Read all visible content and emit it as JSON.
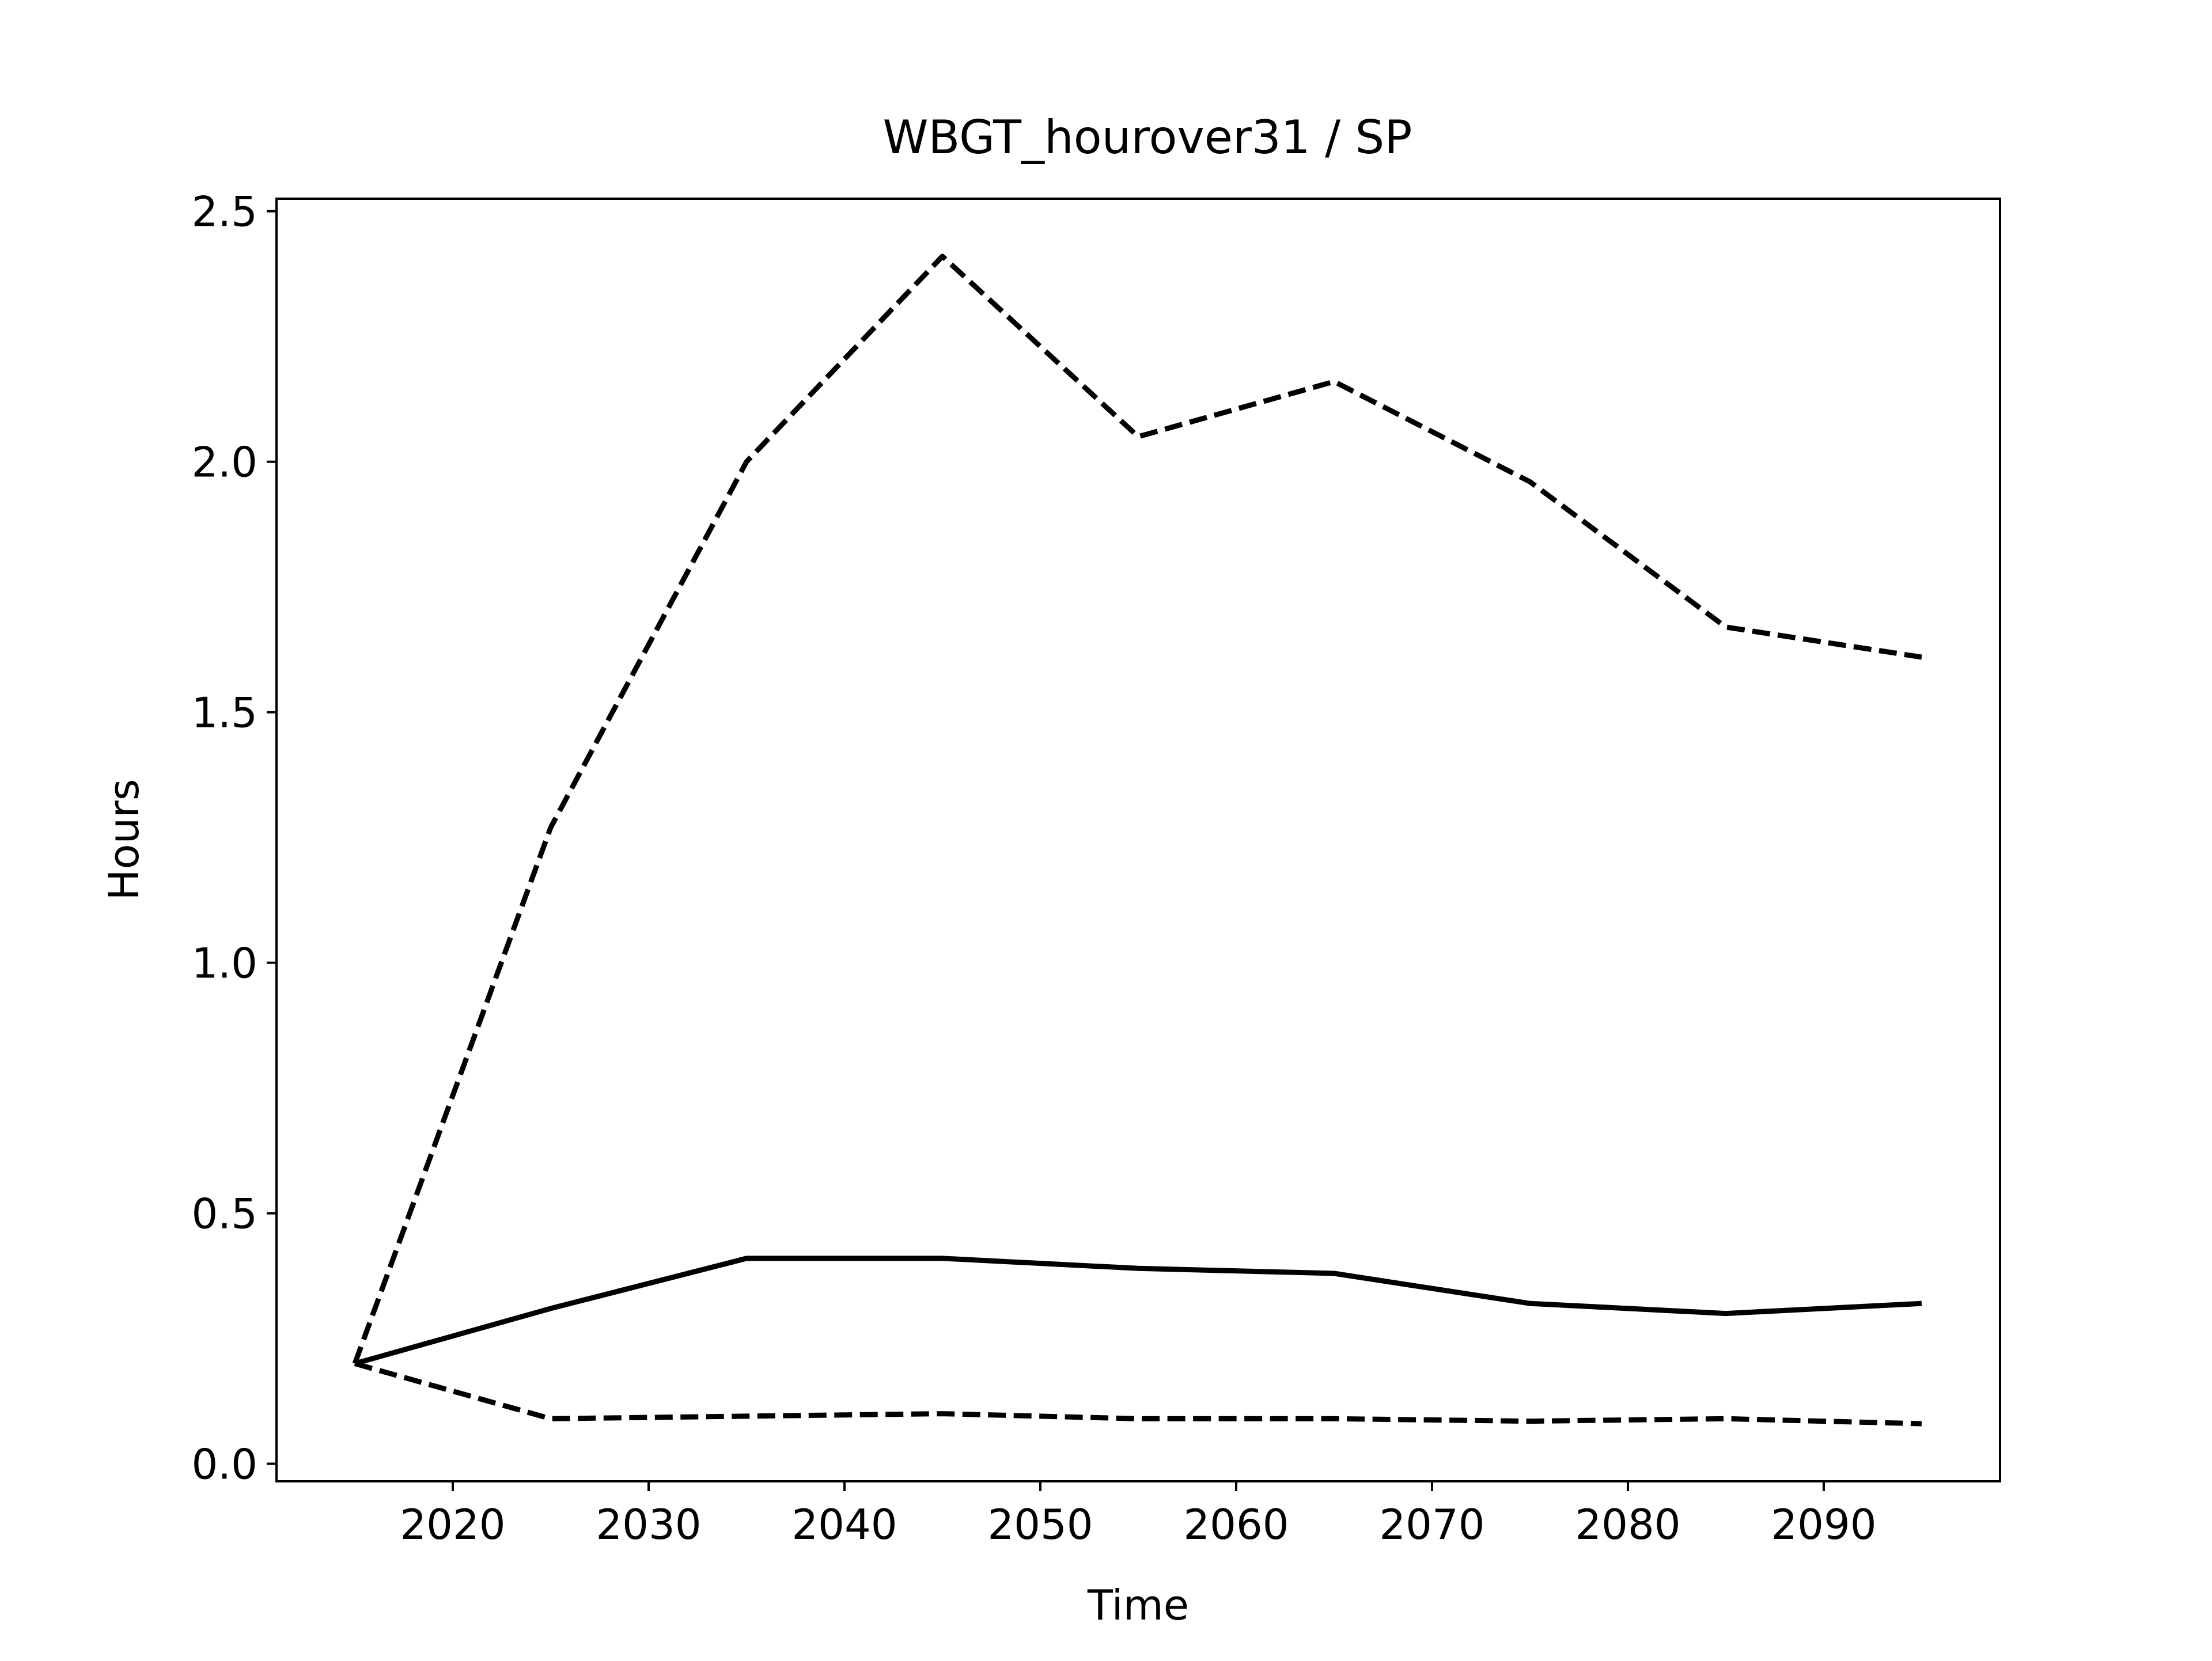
{
  "chart_data": {
    "type": "line",
    "title": "WBGT_hourover31 / SP",
    "xlabel": "Time",
    "ylabel": "Hours",
    "xlim": [
      2011,
      2099
    ],
    "ylim": [
      -0.035,
      2.525
    ],
    "xticks": [
      2020,
      2030,
      2040,
      2050,
      2060,
      2070,
      2080,
      2090
    ],
    "xtick_labels": [
      "2020",
      "2030",
      "2040",
      "2050",
      "2060",
      "2070",
      "2080",
      "2090"
    ],
    "yticks": [
      0.0,
      0.5,
      1.0,
      1.5,
      2.0,
      2.5
    ],
    "ytick_labels": [
      "0.0",
      "0.5",
      "1.0",
      "1.5",
      "2.0",
      "2.5"
    ],
    "grid": false,
    "x": [
      2015,
      2025,
      2035,
      2045,
      2055,
      2065,
      2075,
      2085,
      2095
    ],
    "series": [
      {
        "style": "dashed",
        "color": "#000000",
        "values": [
          0.2,
          1.27,
          2.0,
          2.41,
          2.05,
          2.16,
          1.96,
          1.67,
          1.61
        ]
      },
      {
        "style": "solid",
        "color": "#000000",
        "values": [
          0.2,
          0.31,
          0.41,
          0.41,
          0.39,
          0.38,
          0.32,
          0.3,
          0.32
        ]
      },
      {
        "style": "dashed",
        "color": "#000000",
        "values": [
          0.2,
          0.09,
          0.095,
          0.1,
          0.09,
          0.09,
          0.085,
          0.09,
          0.08
        ]
      }
    ]
  }
}
